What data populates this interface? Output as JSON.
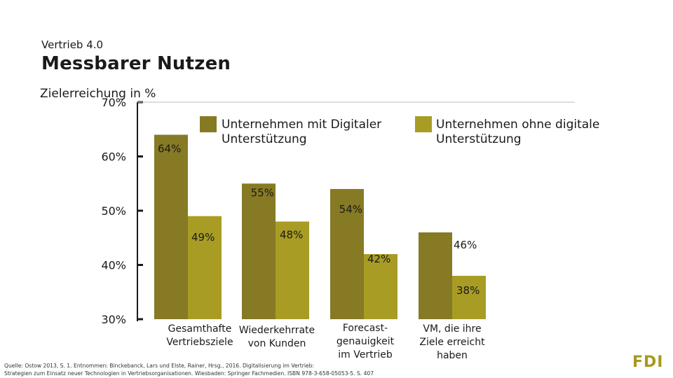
{
  "header": {
    "kicker": "Vertrieb 4.0",
    "title": "Messbarer Nutzen"
  },
  "chart_data": {
    "type": "bar",
    "ylabel": "Zielerreichung in %",
    "ylim": [
      30,
      70
    ],
    "yticks": [
      30,
      40,
      50,
      60,
      70
    ],
    "ytick_labels": [
      "30%",
      "40%",
      "50%",
      "60%",
      "70%"
    ],
    "categories": [
      [
        "Gesamthafte",
        "Vertriebsziele"
      ],
      [
        "Wiederkehrrate",
        "von Kunden"
      ],
      [
        "Forecast-",
        "genauigkeit",
        "im Vertrieb"
      ],
      [
        "VM, die ihre",
        "Ziele erreicht",
        "haben"
      ]
    ],
    "series": [
      {
        "name": [
          "Unternehmen mit Digitaler",
          "Unterstützung"
        ],
        "color": "#867a25",
        "values": [
          64,
          55,
          54,
          46
        ],
        "labels": [
          "64%",
          "55%",
          "54%",
          "46%"
        ]
      },
      {
        "name": [
          "Unternehmen ohne digitale",
          "Unterstützung"
        ],
        "color": "#a89c25",
        "values": [
          49,
          48,
          42,
          38
        ],
        "labels": [
          "49%",
          "48%",
          "42%",
          "38%"
        ]
      }
    ]
  },
  "footer": {
    "source_line1": "Quelle: Ostow 2013, S. 1. Entnommen: Binckebanck, Lars und Elste, Rainer, Hrsg., 2016. Digitalisierung im Vertrieb:",
    "source_line2": "Strategien zum Einsatz neuer Technologien in Vertriebsorganisationen. Wiesbaden: Springer Fachmedien. ISBN 978-3-658-05053-5. S. 407",
    "logo": "FDI",
    "logo_color": "#a8991f"
  }
}
